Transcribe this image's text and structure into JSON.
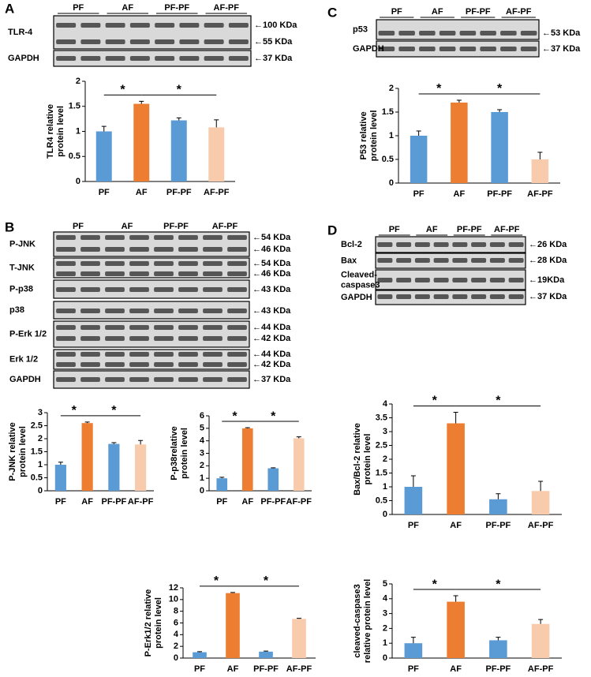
{
  "blots": [
    {
      "panel": "A",
      "groups": [
        "PF",
        "AF",
        "PF-PF",
        "AF-PF"
      ],
      "rows": [
        {
          "label": "TLR-4",
          "markers": [
            "←100 KDa",
            "←55 KDa"
          ]
        },
        {
          "label": "GAPDH",
          "markers": [
            "←37 KDa"
          ]
        }
      ]
    },
    {
      "panel": "B",
      "groups": [
        "PF",
        "AF",
        "PF-PF",
        "AF-PF"
      ],
      "rows": [
        {
          "label": "P-JNK",
          "markers": [
            "←54 KDa",
            "←46 KDa"
          ]
        },
        {
          "label": "T-JNK",
          "markers": [
            "←54 KDa",
            "←46 KDa"
          ]
        },
        {
          "label": "P-p38",
          "markers": [
            "←43 KDa"
          ]
        },
        {
          "label": "p38",
          "markers": [
            "←43 KDa"
          ]
        },
        {
          "label": "P-Erk 1/2",
          "markers": [
            "←44 KDa",
            "←42 KDa"
          ]
        },
        {
          "label": "Erk 1/2",
          "markers": [
            "←44 KDa",
            "←42 KDa"
          ]
        },
        {
          "label": "GAPDH",
          "markers": [
            "←37 KDa"
          ]
        }
      ]
    },
    {
      "panel": "C",
      "groups": [
        "PF",
        "AF",
        "PF-PF",
        "AF-PF"
      ],
      "rows": [
        {
          "label": "p53",
          "markers": [
            "←53 KDa"
          ]
        },
        {
          "label": "GAPDH",
          "markers": [
            "←37 KDa"
          ]
        }
      ]
    },
    {
      "panel": "D",
      "groups": [
        "PF",
        "AF",
        "PF-PF",
        "AF-PF"
      ],
      "rows": [
        {
          "label": "Bcl-2",
          "markers": [
            "←26 KDa"
          ]
        },
        {
          "label": "Bax",
          "markers": [
            "←28 KDa"
          ]
        },
        {
          "label": [
            "Cleaved-",
            "caspase3"
          ],
          "markers": [
            "←19KDa"
          ]
        },
        {
          "label": "GAPDH",
          "markers": [
            "←37 KDa"
          ]
        }
      ]
    }
  ],
  "chart_data": [
    {
      "type": "bar",
      "ylabel": [
        "TLR4 relative",
        "protein level"
      ],
      "categories": [
        "PF",
        "AF",
        "PF-PF",
        "AF-PF"
      ],
      "values": [
        1.0,
        1.55,
        1.22,
        1.08
      ],
      "errors": [
        0.1,
        0.05,
        0.05,
        0.15
      ],
      "colors": [
        "#5b9bd5",
        "#ed7d31",
        "#5b9bd5",
        "#f8cbad"
      ],
      "ylim": [
        0,
        2
      ],
      "yticks": [
        0,
        0.5,
        1,
        1.5,
        2
      ],
      "significance": [
        "*",
        "*"
      ]
    },
    {
      "type": "bar",
      "ylabel": [
        "P53 relative",
        "protein level"
      ],
      "categories": [
        "PF",
        "AF",
        "PF-PF",
        "AF-PF"
      ],
      "values": [
        1.0,
        1.7,
        1.5,
        0.5
      ],
      "errors": [
        0.1,
        0.05,
        0.05,
        0.15
      ],
      "colors": [
        "#5b9bd5",
        "#ed7d31",
        "#5b9bd5",
        "#f8cbad"
      ],
      "ylim": [
        0,
        2
      ],
      "yticks": [
        0,
        0.5,
        1,
        1.5,
        2
      ],
      "significance": [
        "*",
        "*"
      ]
    },
    {
      "type": "bar",
      "ylabel": [
        "P-JNK relative",
        "protein level"
      ],
      "categories": [
        "PF",
        "AF",
        "PF-PF",
        "AF-PF"
      ],
      "values": [
        1.0,
        2.6,
        1.8,
        1.78
      ],
      "errors": [
        0.1,
        0.04,
        0.05,
        0.15
      ],
      "colors": [
        "#5b9bd5",
        "#ed7d31",
        "#5b9bd5",
        "#f8cbad"
      ],
      "ylim": [
        0,
        3
      ],
      "yticks": [
        0,
        0.5,
        1,
        1.5,
        2,
        2.5,
        3
      ],
      "significance": [
        "*",
        "*"
      ]
    },
    {
      "type": "bar",
      "ylabel": [
        "P-p38relative",
        "protein level"
      ],
      "categories": [
        "PF",
        "AF",
        "PF-PF",
        "AF-PF"
      ],
      "values": [
        1.0,
        5.0,
        1.8,
        4.2
      ],
      "errors": [
        0.08,
        0.05,
        0.04,
        0.12
      ],
      "colors": [
        "#5b9bd5",
        "#ed7d31",
        "#5b9bd5",
        "#f8cbad"
      ],
      "ylim": [
        0,
        6
      ],
      "yticks": [
        0,
        1,
        2,
        3,
        4,
        5,
        6
      ],
      "significance": [
        "*",
        "*"
      ]
    },
    {
      "type": "bar",
      "ylabel": [
        "Bax/Bcl-2 relative",
        "protein level"
      ],
      "categories": [
        "PF",
        "AF",
        "PF-PF",
        "AF-PF"
      ],
      "values": [
        1.0,
        3.3,
        0.55,
        0.85
      ],
      "errors": [
        0.4,
        0.4,
        0.2,
        0.35
      ],
      "colors": [
        "#5b9bd5",
        "#ed7d31",
        "#5b9bd5",
        "#f8cbad"
      ],
      "ylim": [
        0,
        4
      ],
      "yticks": [
        0,
        0.5,
        1,
        1.5,
        2,
        2.5,
        3,
        3.5,
        4
      ],
      "significance": [
        "*",
        "*"
      ]
    },
    {
      "type": "bar",
      "ylabel": [
        "P-Erk1/2 relative",
        "protein level"
      ],
      "categories": [
        "PF",
        "AF",
        "PF-PF",
        "AF-PF"
      ],
      "values": [
        1.0,
        11.1,
        1.1,
        6.7
      ],
      "errors": [
        0.1,
        0.1,
        0.1,
        0.1
      ],
      "colors": [
        "#5b9bd5",
        "#ed7d31",
        "#5b9bd5",
        "#f8cbad"
      ],
      "ylim": [
        0,
        12
      ],
      "yticks": [
        0,
        2,
        4,
        6,
        8,
        10,
        12
      ],
      "significance": [
        "*",
        "*"
      ]
    },
    {
      "type": "bar",
      "ylabel": [
        "cleaved-caspase3",
        "relative protein level"
      ],
      "categories": [
        "PF",
        "AF",
        "PF-PF",
        "AF-PF"
      ],
      "values": [
        1.0,
        3.8,
        1.2,
        2.3
      ],
      "errors": [
        0.4,
        0.4,
        0.2,
        0.3
      ],
      "colors": [
        "#5b9bd5",
        "#ed7d31",
        "#5b9bd5",
        "#f8cbad"
      ],
      "ylim": [
        0,
        5
      ],
      "yticks": [
        0,
        1,
        2,
        3,
        4,
        5
      ],
      "significance": [
        "*",
        "*"
      ]
    }
  ]
}
